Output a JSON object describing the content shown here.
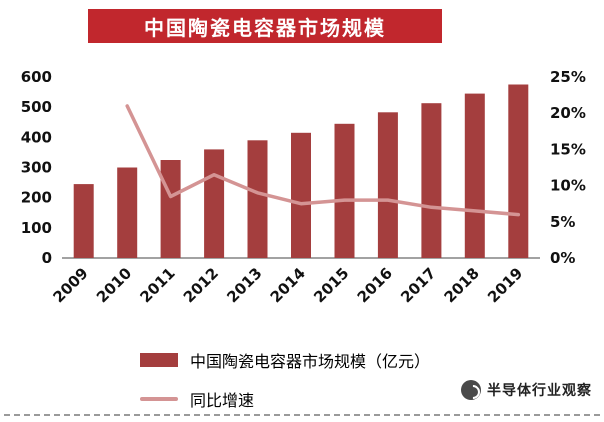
{
  "title": "中国陶瓷电容器市场规模",
  "chart_data": {
    "type": "bar",
    "subtype": "bar-line-combo",
    "title": "中国陶瓷电容器市场规模",
    "categories": [
      "2009",
      "2010",
      "2011",
      "2012",
      "2013",
      "2014",
      "2015",
      "2016",
      "2017",
      "2018",
      "2019"
    ],
    "series": [
      {
        "name": "中国陶瓷电容器市场规模（亿元）",
        "type": "bar",
        "axis": "left",
        "color": "#A43E3E",
        "values": [
          245,
          300,
          325,
          360,
          390,
          415,
          445,
          483,
          513,
          545,
          575
        ]
      },
      {
        "name": "同比增速",
        "type": "line",
        "axis": "right",
        "color": "#D49494",
        "values": [
          null,
          21,
          8.5,
          11.5,
          9,
          7.5,
          8,
          8,
          7,
          6.5,
          6
        ]
      }
    ],
    "left_axis": {
      "min": 0,
      "max": 600,
      "step": 100,
      "ticks": [
        "0",
        "100",
        "200",
        "300",
        "400",
        "500",
        "600"
      ]
    },
    "right_axis": {
      "min": 0,
      "max": 25,
      "step": 5,
      "ticks": [
        "0%",
        "5%",
        "10%",
        "15%",
        "20%",
        "25%"
      ]
    },
    "grid": false,
    "legend_position": "bottom-left"
  },
  "watermark": {
    "text": "半导体行业观察"
  }
}
